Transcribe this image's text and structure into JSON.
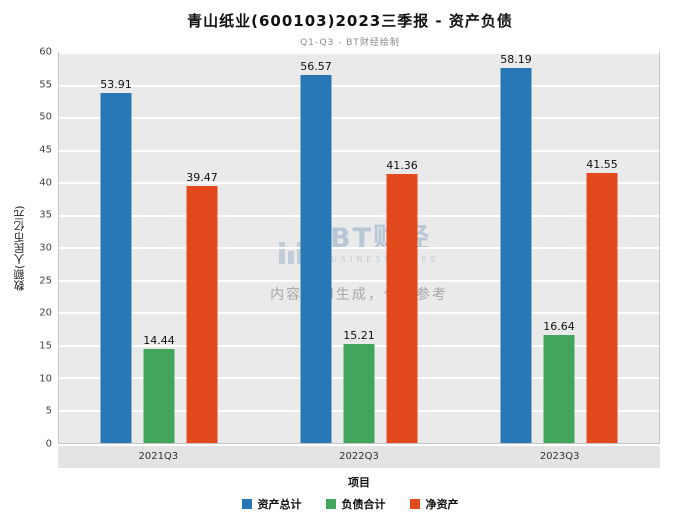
{
  "title": "青山纸业(600103)2023三季报 - 资产负债",
  "subtitle": "Q1-Q3 - BT财经绘制",
  "watermark": {
    "logo_text": "BT财经",
    "logo_sub": "BUSINESSWIRES",
    "ai_note": "内容由AI生成，仅供参考"
  },
  "chart_data": {
    "type": "bar",
    "title": "青山纸业(600103)2023三季报 - 资产负债",
    "subtitle": "Q1-Q3 - BT财经绘制",
    "categories": [
      "2021Q3",
      "2022Q3",
      "2023Q3"
    ],
    "series": [
      {
        "name": "资产总计",
        "color": "#2878b5",
        "values": [
          53.91,
          56.57,
          58.19
        ]
      },
      {
        "name": "负债合计",
        "color": "#43a55c",
        "values": [
          14.44,
          15.21,
          16.64
        ]
      },
      {
        "name": "净资产",
        "color": "#e2491d",
        "values": [
          39.47,
          41.36,
          41.55
        ]
      }
    ],
    "xlabel": "项目",
    "ylabel": "数额(人民币亿元)",
    "ylim": [
      0,
      60
    ],
    "ytick_step": 5,
    "grid": true,
    "legend_position": "bottom"
  }
}
